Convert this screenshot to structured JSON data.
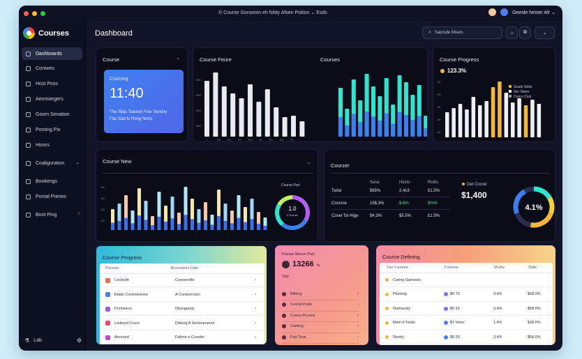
{
  "titlebar": {
    "title": "© Course Gonsexin eh fobty Afsen Psition ⌄   Esds",
    "user": "Geesle hester Afr ⌄",
    "colors": [
      "#ff5f57",
      "#febc2e",
      "#28c840"
    ]
  },
  "sidebar": {
    "brand": "Courses",
    "items": [
      {
        "label": "Dashboards",
        "icon": "sparkle-icon",
        "active": true
      },
      {
        "label": "Coniwes",
        "icon": "book-icon"
      },
      {
        "label": "Host Poss",
        "icon": "grid-icon"
      },
      {
        "label": "Aeomoegers",
        "icon": "bookmark-icon"
      },
      {
        "label": "Goom Senation",
        "icon": "chat-icon"
      },
      {
        "label": "Ponting Pis",
        "icon": "folder-icon"
      },
      {
        "label": "Hiosrs",
        "icon": "star-icon"
      },
      {
        "label": "Coaliguration",
        "icon": "gear-icon",
        "chevron": "⌄"
      },
      {
        "label": "Bookengs",
        "icon": "list-icon"
      },
      {
        "label": "Pontal Preries",
        "icon": "table-icon"
      },
      {
        "label": "Boot Ping",
        "icon": "calendar-icon",
        "chevron": "›"
      }
    ],
    "footer": "Lab"
  },
  "header": {
    "title": "Dashboard",
    "search_placeholder": "Saprsde Mears",
    "btn_home": "⌂",
    "btn_copy": "⧉",
    "btn_menu": "⌄"
  },
  "course_card": {
    "title": "Course",
    "menu": "⌄",
    "clock_label": "Courzng",
    "clock_time": "11:40",
    "clock_line1": "The Sliqs Toasion Fesr Seniiny",
    "clock_line2": "Flar Sad fu Rnng Nmrs"
  },
  "courses_feature": {
    "title_left": "Course Feure",
    "title_right": "Courses",
    "xlabels": [
      "ı",
      "Fd",
      "Eo",
      "Fe",
      "Fw",
      "To",
      "Ev",
      "Fd",
      "Fe"
    ]
  },
  "course_progress_top": {
    "title": "Course Progress",
    "value": "123.3%",
    "legend": [
      "Goute Sdoe",
      "Fiin Sleen",
      "Cooru Cost"
    ]
  },
  "course_new": {
    "title": "Course New",
    "donut_value": "1.0",
    "donut_label": "Course Pert",
    "donut_sub": "9 Vumes"
  },
  "counter": {
    "title": "Courzer",
    "headers": [
      "Sasa",
      "Hesto",
      "Rciifu"
    ],
    "rows": [
      {
        "label": "Tsdal",
        "values": [
          "$65%",
          "2.4s3",
          "£1.5%"
        ]
      },
      {
        "label": "Cossrse",
        "values": [
          "15$.3%",
          "$.6%",
          "$%%"
        ]
      },
      {
        "label": "Cosel Tol Hige",
        "values": [
          "$4.3%",
          "$5.5%",
          "£1.5%"
        ]
      }
    ],
    "legend_label": "Det Cocrer",
    "amount": "$1,400",
    "donut_pct": "4.1%"
  },
  "course_progress_bottom": {
    "title": "Course Progress",
    "headers": [
      "Pecsole",
      "Bcoredees Dale"
    ],
    "rows": [
      {
        "name": "Lochede",
        "desc": "Coorsectile",
        "color": "#ef6a4a"
      },
      {
        "name": "Efadc Conesteenee",
        "desc": "A Contarectisn",
        "color": "#4c7ef0"
      },
      {
        "name": "Ponheece",
        "desc": "Dbsrigarsly",
        "color": "#9b5de5"
      },
      {
        "name": "Lookerd Cours",
        "desc": "Deleng A Senoramenet",
        "color": "#ef4a6a"
      },
      {
        "name": "Aerooed",
        "desc": "Fakme e Coseler",
        "color": "#c04ad0"
      }
    ]
  },
  "pink_card": {
    "title": "Fourae Msssn Puls",
    "value": "13266",
    "unit": "hv",
    "subtitle": "Toly",
    "items": [
      "Blibing",
      "Covnd Posts",
      "Coesa Pusses",
      "Casting",
      "Fod Toos"
    ]
  },
  "course_defining": {
    "title": "Cource Defining",
    "headers": [
      "Tter Fssmed",
      "Fororise",
      "Mudry",
      "Salle"
    ],
    "rows": [
      {
        "name": "Caring Gamsian",
        "values": [
          "",
          "",
          ""
        ],
        "color": "#f4b63a",
        "chip": ""
      },
      {
        "name": "Ploming",
        "values": [
          "$0 75",
          "3.4%",
          "$58.0%"
        ],
        "color": "#f4b63a",
        "chip": "#8a70e8"
      },
      {
        "name": "Damaunty",
        "values": [
          "$0 15",
          "3.4%",
          "$58.0%"
        ],
        "color": "#f4b63a",
        "chip": "#8a70e8"
      },
      {
        "name": "Med of Foste",
        "values": [
          "$7 Veter",
          "1.4%",
          "$38.0%"
        ],
        "color": "#f4b63a",
        "chip": "#4c7ef0"
      },
      {
        "name": "Neoky",
        "values": [
          "$0 20",
          "3.4%",
          "$58.0%"
        ],
        "color": "#f4b63a",
        "chip": "#4c7ef0"
      }
    ]
  }
}
